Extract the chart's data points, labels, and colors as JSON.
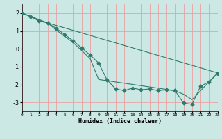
{
  "xlabel": "Humidex (Indice chaleur)",
  "xlim": [
    0,
    23
  ],
  "ylim": [
    -3.5,
    2.5
  ],
  "xticks": [
    0,
    1,
    2,
    3,
    4,
    5,
    6,
    7,
    8,
    9,
    10,
    11,
    12,
    13,
    14,
    15,
    16,
    17,
    18,
    19,
    20,
    21,
    22,
    23
  ],
  "yticks": [
    -3,
    -2,
    -1,
    0,
    1,
    2
  ],
  "background_color": "#cce8e4",
  "grid_color": "#e8a0a0",
  "line_color": "#2e7b6e",
  "line1_x": [
    0,
    1,
    2,
    3,
    4,
    5,
    6,
    7,
    8,
    9,
    10,
    11,
    12,
    13,
    14,
    15,
    16,
    17,
    18,
    19,
    20,
    21,
    22,
    23
  ],
  "line1_y": [
    2.0,
    1.8,
    1.55,
    1.45,
    1.15,
    0.8,
    0.45,
    0.05,
    -0.35,
    -0.8,
    -1.75,
    -2.25,
    -2.35,
    -2.2,
    -2.3,
    -2.25,
    -2.35,
    -2.3,
    -2.35,
    -3.05,
    -3.1,
    -2.1,
    -1.85,
    -1.4
  ],
  "line2_x": [
    0,
    3,
    23
  ],
  "line2_y": [
    2.0,
    1.45,
    -1.35
  ],
  "line3_x": [
    0,
    2,
    3,
    4,
    5,
    6,
    7,
    8,
    9,
    18,
    19,
    20,
    23
  ],
  "line3_y": [
    2.0,
    1.6,
    1.45,
    1.05,
    0.7,
    0.35,
    -0.1,
    -0.55,
    -1.72,
    -2.35,
    -2.55,
    -2.85,
    -1.35
  ]
}
